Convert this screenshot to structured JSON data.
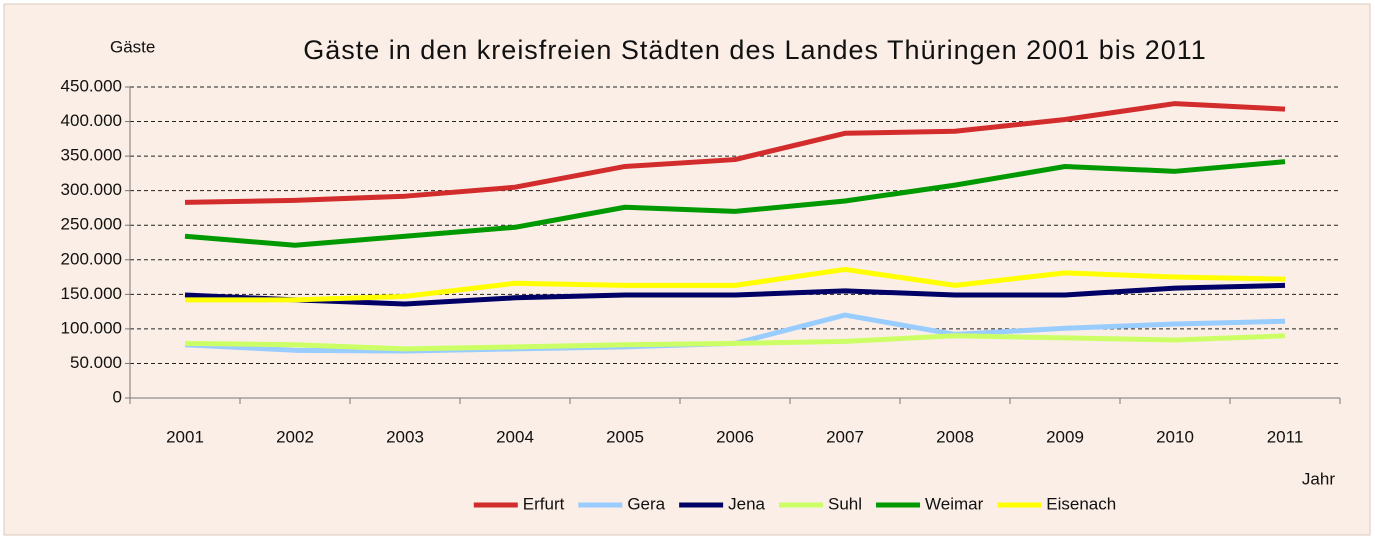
{
  "chart_data": {
    "type": "line",
    "title": "Gäste in den kreisfreien Städten des Landes Thüringen 2001 bis 2011",
    "y_label": "Gäste",
    "x_label": "Jahr",
    "categories": [
      "2001",
      "2002",
      "2003",
      "2004",
      "2005",
      "2006",
      "2007",
      "2008",
      "2009",
      "2010",
      "2011"
    ],
    "series": [
      {
        "name": "Erfurt",
        "color": "#d22c2c",
        "values": [
          283000,
          286000,
          292000,
          305000,
          335000,
          345000,
          383000,
          386000,
          403000,
          426000,
          418000
        ]
      },
      {
        "name": "Gera",
        "color": "#99ccff",
        "values": [
          77000,
          69000,
          68000,
          71000,
          74000,
          79000,
          120000,
          92000,
          101000,
          107000,
          111000
        ]
      },
      {
        "name": "Jena",
        "color": "#000066",
        "values": [
          149000,
          142000,
          136000,
          145000,
          149000,
          149000,
          155000,
          149000,
          149000,
          159000,
          163000
        ]
      },
      {
        "name": "Suhl",
        "color": "#ccff66",
        "values": [
          79000,
          77000,
          71000,
          74000,
          77000,
          79000,
          82000,
          90000,
          87000,
          84000,
          90000
        ]
      },
      {
        "name": "Weimar",
        "color": "#009900",
        "values": [
          234000,
          221000,
          234000,
          247000,
          276000,
          270000,
          285000,
          308000,
          335000,
          328000,
          342000
        ]
      },
      {
        "name": "Eisenach",
        "color": "#ffff00",
        "values": [
          142000,
          142000,
          147000,
          166000,
          163000,
          163000,
          186000,
          163000,
          181000,
          175000,
          172000
        ]
      }
    ],
    "ylim": [
      0,
      450000
    ],
    "yticks": [
      0,
      {
        "value": 50000,
        "label": "50.000"
      },
      {
        "value": 100000,
        "label": "100.000"
      },
      {
        "value": 150000,
        "label": "150.000"
      },
      {
        "value": 200000,
        "label": "200.000"
      },
      {
        "value": 250000,
        "label": "250.000"
      },
      {
        "value": 300000,
        "label": "300.000"
      },
      {
        "value": 350000,
        "label": "350.000"
      },
      {
        "value": 400000,
        "label": "400.000"
      },
      {
        "value": 450000,
        "label": "450.000"
      }
    ],
    "grid": true,
    "legend": "bottom"
  }
}
